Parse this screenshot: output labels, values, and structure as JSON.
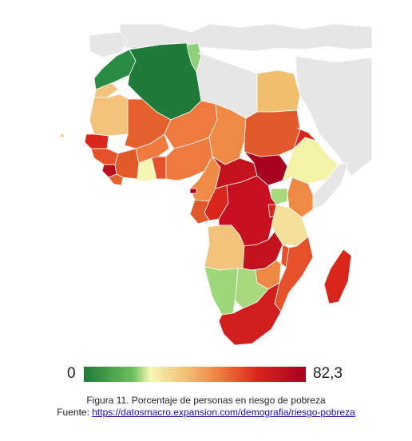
{
  "legend": {
    "min_label": "0",
    "max_label": "82,3",
    "colors": [
      "#1e7b3a",
      "#6cbf5a",
      "#f6f7b4",
      "#f2c37b",
      "#ee7a3f",
      "#d9261c",
      "#a50020"
    ]
  },
  "caption": {
    "figure_text": "Figura 11. Porcentaje de personas en riesgo de pobreza",
    "source_prefix": "Fuente: ",
    "source_url": "https://datosmacro.expansion.com/demografia/riesgo-pobreza"
  },
  "map": {
    "no_data_color": "#e6e6e6",
    "background": "#ffffff"
  }
}
